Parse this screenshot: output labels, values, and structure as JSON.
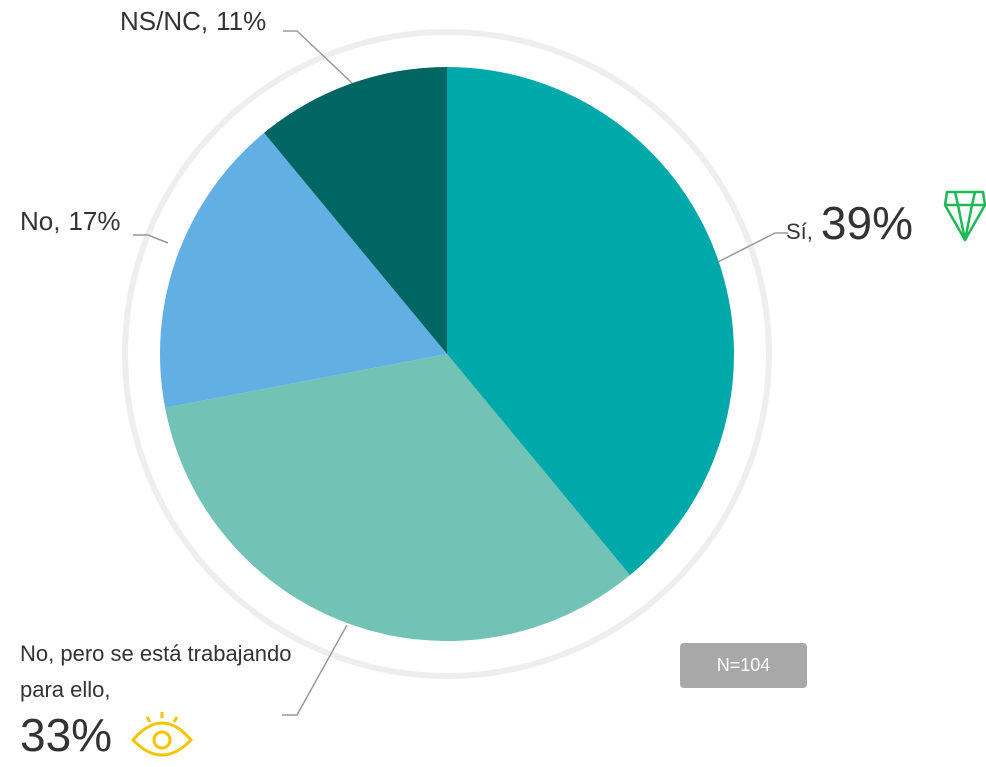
{
  "chart_data": {
    "type": "pie",
    "categories": [
      "Sí,",
      "No, pero se está trabajando para ello,",
      "No,",
      "NS/NC,"
    ],
    "values": [
      39,
      33,
      17,
      11
    ],
    "value_labels": [
      "39%",
      "33%",
      "17%",
      "11%"
    ],
    "colors": [
      "#00a9a9",
      "#72c2b5",
      "#62b0e3",
      "#006664"
    ],
    "annotation": "N=104"
  }
}
